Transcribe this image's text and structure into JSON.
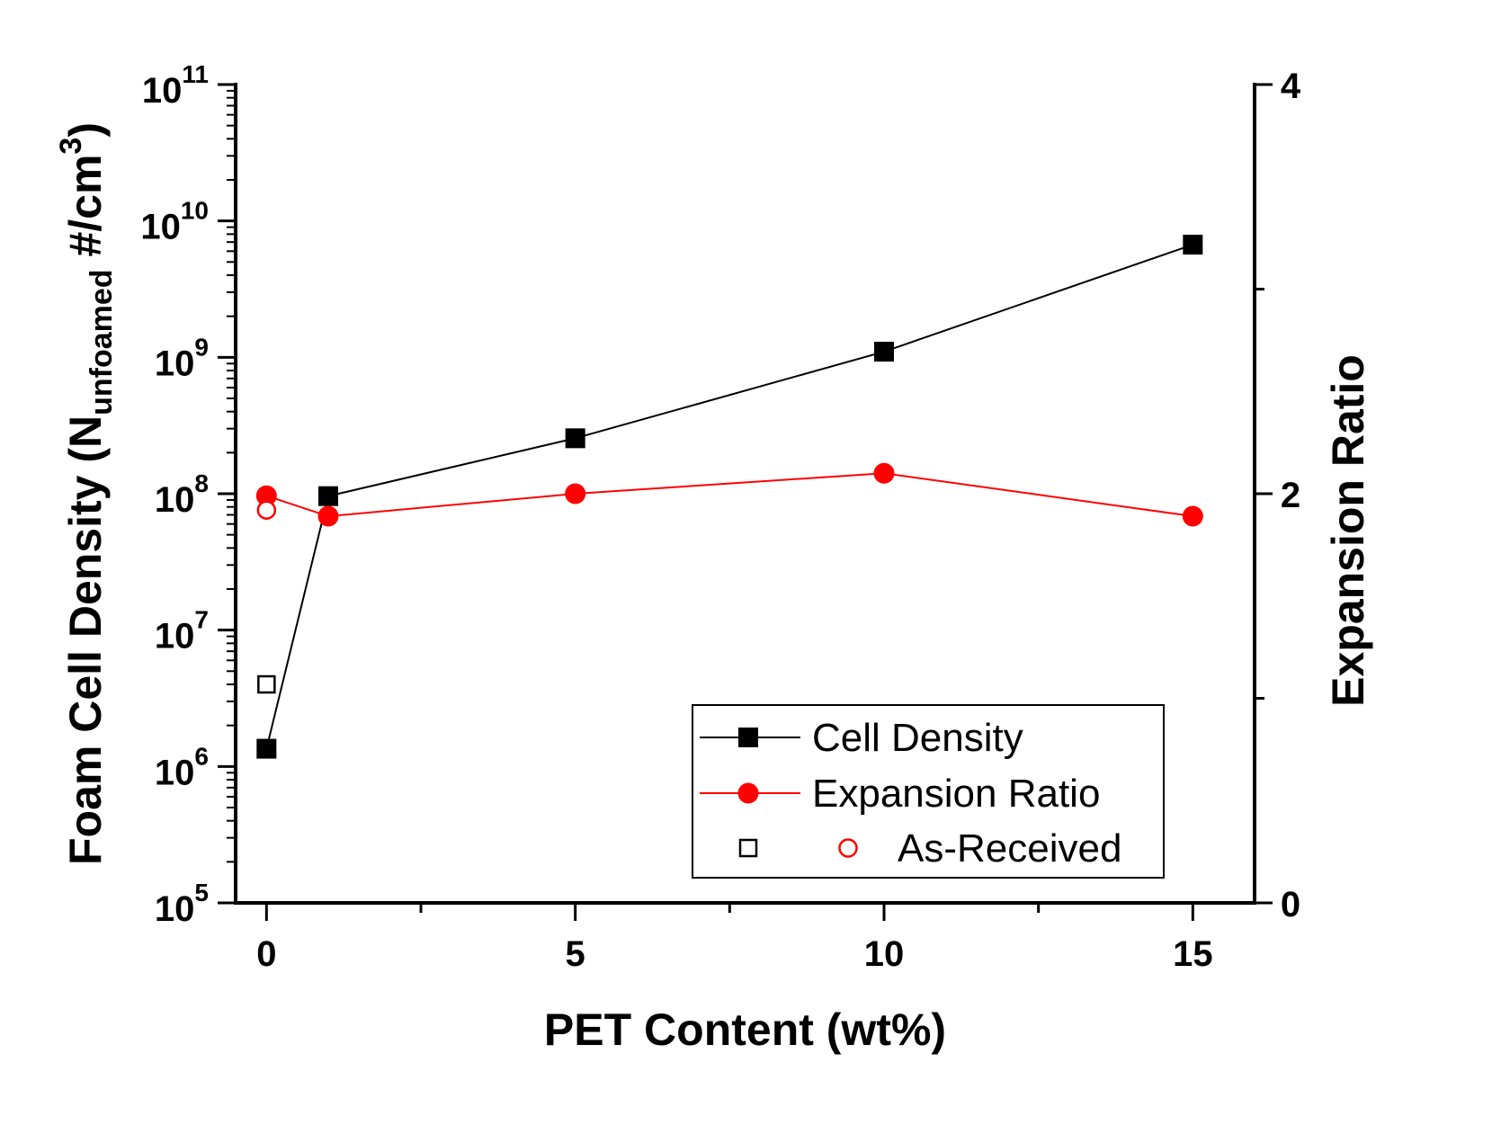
{
  "chart_data": {
    "type": "line",
    "title": "",
    "xlabel": "PET Content (wt%)",
    "ylabel": {
      "prefix": "Foam Cell Density (N",
      "subscript": "unfoamed",
      "middle": " #/cm",
      "superscript": "3",
      "suffix": ")"
    },
    "y2label": "Expansion Ratio",
    "xlim": [
      -0.5,
      16
    ],
    "xticks": [
      "0",
      "5",
      "10",
      "15"
    ],
    "ylim": [
      100000,
      100000000000
    ],
    "yscale": "log",
    "yticks": [
      {
        "base": "10",
        "exp": "5"
      },
      {
        "base": "10",
        "exp": "6"
      },
      {
        "base": "10",
        "exp": "7"
      },
      {
        "base": "10",
        "exp": "8"
      },
      {
        "base": "10",
        "exp": "9"
      },
      {
        "base": "10",
        "exp": "10"
      },
      {
        "base": "10",
        "exp": "11"
      }
    ],
    "y2lim": [
      0,
      4
    ],
    "y2ticks": [
      "0",
      "2",
      "4"
    ],
    "grid": false,
    "legend_position": "bottom-right",
    "series": [
      {
        "name": "Cell Density",
        "axis": "left",
        "marker": "square-filled",
        "color": "#000000",
        "x": [
          0,
          1,
          5,
          10,
          15
        ],
        "values": [
          1350000,
          96000000,
          255000000,
          1100000000,
          6700000000
        ]
      },
      {
        "name": "Expansion Ratio",
        "axis": "right",
        "marker": "circle-filled",
        "color": "#ff0000",
        "x": [
          0,
          1,
          5,
          10,
          15
        ],
        "values": [
          1.99,
          1.89,
          2.0,
          2.1,
          1.89
        ]
      }
    ],
    "as_received": {
      "name": "As-Received",
      "points": [
        {
          "axis": "left",
          "marker": "square-open",
          "color": "#000000",
          "x": 0,
          "value": 4000000
        },
        {
          "axis": "right",
          "marker": "circle-open",
          "color": "#ff0000",
          "x": 0,
          "value": 1.92
        }
      ]
    },
    "legend": [
      {
        "label": "Cell Density"
      },
      {
        "label": "Expansion Ratio"
      },
      {
        "label": "As-Received"
      }
    ]
  }
}
